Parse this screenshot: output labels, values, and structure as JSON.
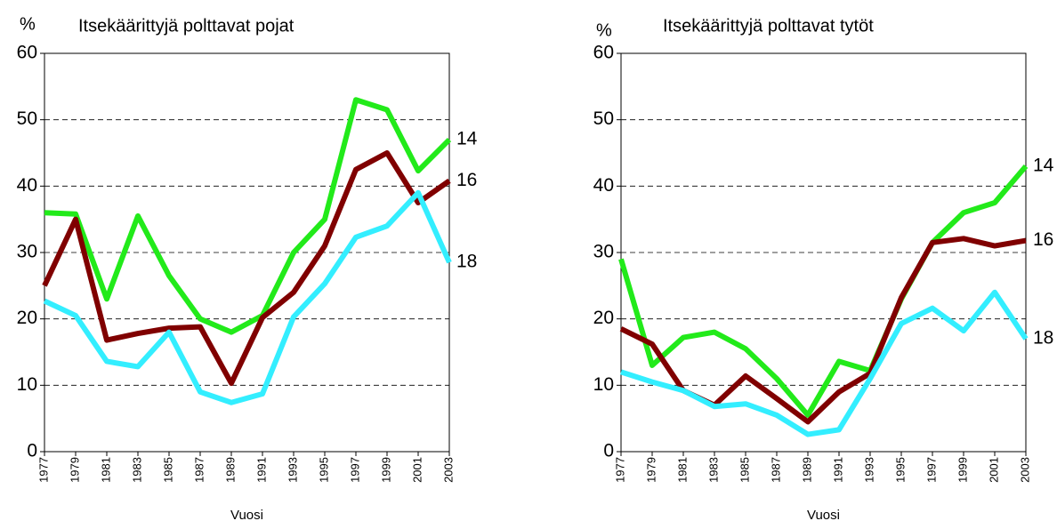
{
  "chart_data": [
    {
      "type": "line",
      "title": "Itsekäärittyjä polttavat pojat",
      "y_label": "%",
      "x_label": "Vuosi",
      "categories": [
        "1977",
        "1979",
        "1981",
        "1983",
        "1985",
        "1987",
        "1989",
        "1991",
        "1993",
        "1995",
        "1997",
        "1999",
        "2001",
        "2003"
      ],
      "series": [
        {
          "name": "14",
          "color": "#22ea1a",
          "values": [
            36,
            35.8,
            23,
            35.5,
            26.5,
            20,
            18,
            20.5,
            30,
            35,
            53,
            51.5,
            42.3,
            47
          ]
        },
        {
          "name": "16",
          "color": "#800000",
          "values": [
            25,
            35,
            16.8,
            17.8,
            18.6,
            18.8,
            10.3,
            20.2,
            24,
            31,
            42.5,
            45,
            37.5,
            40.8
          ]
        },
        {
          "name": "18",
          "color": "#33eeff",
          "values": [
            22.7,
            20.5,
            13.6,
            12.8,
            18,
            9,
            7.4,
            8.7,
            20.3,
            25.3,
            32.3,
            34,
            39,
            28.5
          ]
        }
      ],
      "ylim": [
        0,
        60
      ],
      "yticks": [
        0,
        10,
        20,
        30,
        40,
        50,
        60
      ],
      "grid": true
    },
    {
      "type": "line",
      "title": "Itsekäärittyjä polttavat tytöt",
      "y_label": "%",
      "x_label": "Vuosi",
      "categories": [
        "1977",
        "1979",
        "1981",
        "1983",
        "1985",
        "1987",
        "1989",
        "1991",
        "1993",
        "1995",
        "1997",
        "1999",
        "2001",
        "2003"
      ],
      "series": [
        {
          "name": "14",
          "color": "#22ea1a",
          "values": [
            29,
            13,
            17.2,
            18,
            15.5,
            11,
            5.5,
            13.6,
            12.2,
            23,
            31.5,
            36,
            37.5,
            43
          ]
        },
        {
          "name": "16",
          "color": "#800000",
          "values": [
            18.5,
            16.2,
            9.2,
            7,
            11.4,
            8,
            4.5,
            9,
            11.8,
            23.2,
            31.5,
            32.1,
            31,
            31.8
          ]
        },
        {
          "name": "18",
          "color": "#33eeff",
          "values": [
            12,
            10.5,
            9.2,
            6.8,
            7.2,
            5.5,
            2.6,
            3.3,
            11,
            19.3,
            21.6,
            18.2,
            24,
            17
          ]
        }
      ],
      "ylim": [
        0,
        60
      ],
      "yticks": [
        0,
        10,
        20,
        30,
        40,
        50,
        60
      ],
      "grid": true
    }
  ]
}
